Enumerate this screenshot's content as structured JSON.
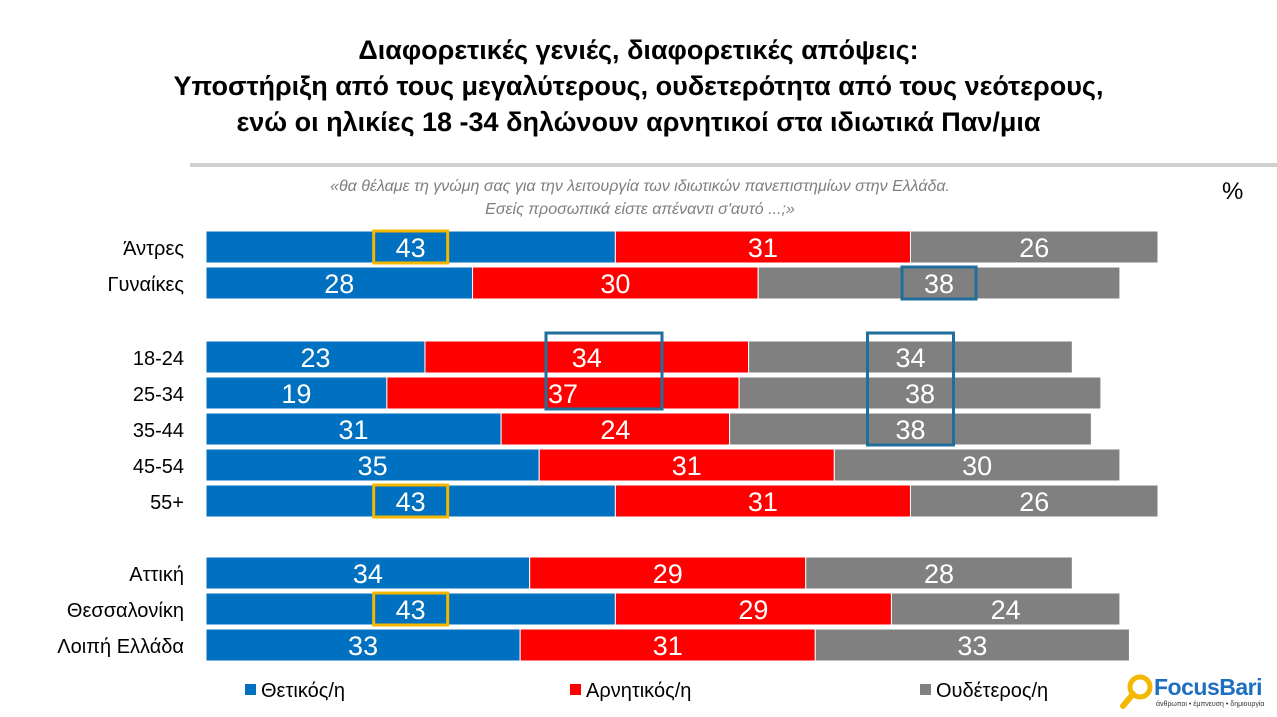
{
  "title_lines": [
    "Διαφορετικές γενιές, διαφορετικές απόψεις:",
    "Υποστήριξη από τους μεγαλύτερους, ουδετερότητα από τους νεότερους,",
    "ενώ οι ηλικίες 18 -34 δηλώνουν αρνητικοί στα ιδιωτικά Παν/μια"
  ],
  "subtitle_lines": [
    "«θα θέλαμε τη γνώμη σας για την λειτουργία των ιδιωτικών πανεπιστημίων στην Ελλάδα.",
    "Εσείς προσωπικά είστε απέναντι σ'αυτό ...;»"
  ],
  "unit_label": "%",
  "logo": {
    "name": "FocusBari",
    "tagline": "άνθρωποι • έμπνευση • δημιουργία"
  },
  "chart_data": {
    "type": "bar",
    "orientation": "horizontal",
    "stacked": true,
    "xlim": [
      0,
      100
    ],
    "categories": [
      "Άντρες",
      "Γυναίκες",
      "18-24",
      "25-34",
      "35-44",
      "45-54",
      "55+",
      "Αττική",
      "Θεσσαλονίκη",
      "Λοιπή Ελλάδα"
    ],
    "groups": [
      [
        "Άντρες",
        "Γυναίκες"
      ],
      [
        "18-24",
        "25-34",
        "35-44",
        "45-54",
        "55+"
      ],
      [
        "Αττική",
        "Θεσσαλονίκη",
        "Λοιπή Ελλάδα"
      ]
    ],
    "series": [
      {
        "name": "Θετικός/η",
        "color": "#0070c0",
        "values": [
          43,
          28,
          23,
          19,
          31,
          35,
          43,
          34,
          43,
          33
        ]
      },
      {
        "name": "Αρνητικός/η",
        "color": "#ff0000",
        "values": [
          31,
          30,
          34,
          37,
          24,
          31,
          31,
          29,
          29,
          31
        ]
      },
      {
        "name": "Ουδέτερος/η",
        "color": "#808080",
        "values": [
          26,
          38,
          34,
          38,
          38,
          30,
          26,
          28,
          24,
          33
        ]
      }
    ],
    "legend_position": "bottom",
    "highlights": [
      {
        "rows": [
          0,
          0
        ],
        "series": 0,
        "color": "#f5b800"
      },
      {
        "rows": [
          1,
          1
        ],
        "series": 2,
        "color": "#1f6e9b"
      },
      {
        "rows": [
          2,
          3
        ],
        "series": 1,
        "color": "#1f6e9b"
      },
      {
        "rows": [
          2,
          4
        ],
        "series": 2,
        "color": "#1f6e9b"
      },
      {
        "rows": [
          6,
          6
        ],
        "series": 0,
        "color": "#f5b800"
      },
      {
        "rows": [
          8,
          8
        ],
        "series": 0,
        "color": "#f5b800"
      }
    ]
  }
}
